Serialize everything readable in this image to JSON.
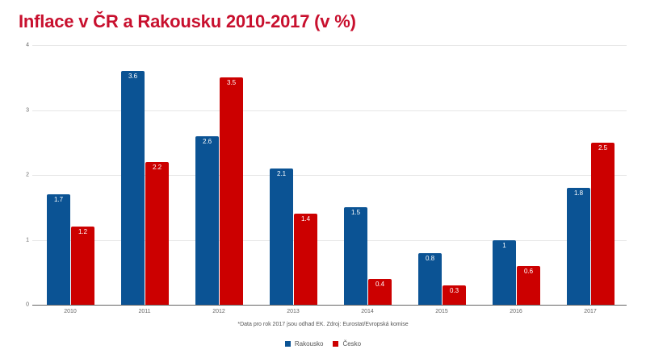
{
  "chart_data": {
    "type": "bar",
    "title": "Inflace v ČR a Rakousku 2010-2017 (v %)",
    "xlabel": "",
    "ylabel": "",
    "ylim": [
      0,
      4
    ],
    "yticks": [
      "0",
      "1",
      "2",
      "3",
      "4"
    ],
    "categories": [
      "2010",
      "2011",
      "2012",
      "2013",
      "2014",
      "2015",
      "2016",
      "2017"
    ],
    "series": [
      {
        "name": "Rakousko",
        "color": "#0b5394",
        "values": [
          1.7,
          3.6,
          2.6,
          2.1,
          1.5,
          0.8,
          1,
          1.8
        ],
        "labels": [
          "1.7",
          "3.6",
          "2.6",
          "2.1",
          "1.5",
          "0.8",
          "1",
          "1.8"
        ]
      },
      {
        "name": "Česko",
        "color": "#cc0000",
        "values": [
          1.2,
          2.2,
          3.5,
          1.4,
          0.4,
          0.3,
          0.6,
          2.5
        ],
        "labels": [
          "1.2",
          "2.2",
          "3.5",
          "1.4",
          "0.4",
          "0.3",
          "0.6",
          "2.5"
        ]
      }
    ],
    "grid": true,
    "legend_position": "bottom",
    "annotation": "*Data pro rok 2017 jsou odhad EK. Zdroj: Eurostat/Evropská komise"
  },
  "title_color": "#c8102e"
}
